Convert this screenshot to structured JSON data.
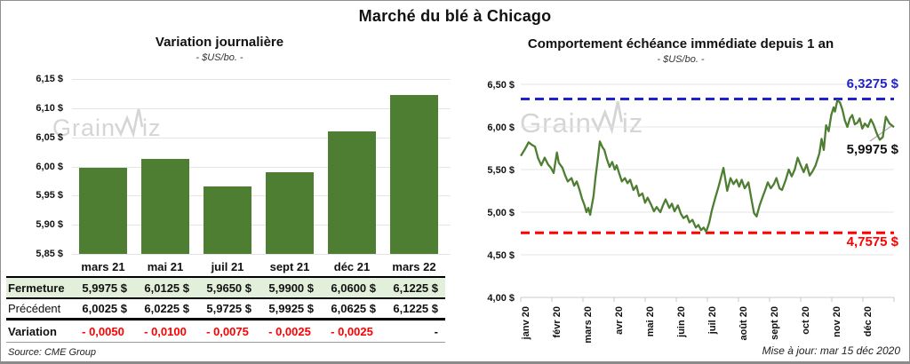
{
  "title": "Marché du blé à Chicago",
  "source": "Source: CME Group",
  "updated": "Mise à jour: mar 15 déc 2020",
  "watermark": {
    "part1": "Grain",
    "part2": "iz"
  },
  "colors": {
    "green": "#4e7e32",
    "light_green": "#e2efda",
    "blue": "#2222cc",
    "red": "#ff0000",
    "grid": "#e4e4e4",
    "axis": "#c8c8c8",
    "watermark": "#d5d5d5"
  },
  "table": {
    "columns": [
      "mars 21",
      "mai 21",
      "juil 21",
      "sept 21",
      "déc 21",
      "mars 22"
    ],
    "rows": [
      {
        "kind": "close",
        "label": "Fermeture",
        "values": [
          "5,9975 $",
          "6,0125 $",
          "5,9650 $",
          "5,9900 $",
          "6,0600 $",
          "6,1225 $"
        ]
      },
      {
        "kind": "prev",
        "label": "Précédent",
        "values": [
          "6,0025 $",
          "6,0225 $",
          "5,9725 $",
          "5,9925 $",
          "6,0625 $",
          "6,1225 $"
        ]
      },
      {
        "kind": "chg",
        "label": "Variation",
        "values": [
          "- 0,0050",
          "- 0,0100",
          "- 0,0075",
          "- 0,0025",
          "- 0,0025",
          "-"
        ]
      }
    ]
  },
  "chart_data": [
    {
      "type": "bar",
      "title": "Variation journalière",
      "subtitle": "- $US/bo. -",
      "categories": [
        "mars 21",
        "mai 21",
        "juil 21",
        "sept 21",
        "déc 21",
        "mars 22"
      ],
      "values": [
        5.9975,
        6.0125,
        5.965,
        5.99,
        6.06,
        6.1225
      ],
      "ylabel": "$US/bo.",
      "ylim": [
        5.85,
        6.15
      ],
      "ytick_step": 0.05,
      "grid": true,
      "bar_color": "#4e7e32"
    },
    {
      "type": "line",
      "title": "Comportement échéance immédiate depuis 1 an",
      "subtitle": "- $US/bo. -",
      "x_labels": [
        "janv 20",
        "févr 20",
        "mars 20",
        "avr 20",
        "mai 20",
        "juin 20",
        "juil 20",
        "août 20",
        "sept 20",
        "oct 20",
        "nov 20",
        "déc 20"
      ],
      "ylim": [
        4.0,
        6.5
      ],
      "ytick_step": 0.5,
      "grid": true,
      "max_line": {
        "value": 6.3275,
        "label": "6,3275 $",
        "color": "#2222cc"
      },
      "min_line": {
        "value": 4.7575,
        "label": "4,7575 $",
        "color": "#ff0000"
      },
      "last_label": {
        "value": 5.9975,
        "label": "5,9975 $",
        "color": "#111111"
      },
      "series": [
        {
          "name": "échéance immédiate",
          "color": "#4e7e32",
          "points": [
            [
              0.0,
              5.66
            ],
            [
              0.01,
              5.73
            ],
            [
              0.021,
              5.82
            ],
            [
              0.03,
              5.79
            ],
            [
              0.038,
              5.77
            ],
            [
              0.046,
              5.64
            ],
            [
              0.055,
              5.55
            ],
            [
              0.064,
              5.64
            ],
            [
              0.073,
              5.56
            ],
            [
              0.081,
              5.52
            ],
            [
              0.088,
              5.46
            ],
            [
              0.097,
              5.7
            ],
            [
              0.102,
              5.58
            ],
            [
              0.112,
              5.52
            ],
            [
              0.119,
              5.43
            ],
            [
              0.126,
              5.36
            ],
            [
              0.136,
              5.4
            ],
            [
              0.143,
              5.31
            ],
            [
              0.15,
              5.36
            ],
            [
              0.157,
              5.27
            ],
            [
              0.164,
              5.16
            ],
            [
              0.171,
              5.08
            ],
            [
              0.176,
              5.0
            ],
            [
              0.181,
              5.05
            ],
            [
              0.186,
              4.97
            ],
            [
              0.195,
              5.19
            ],
            [
              0.2,
              5.4
            ],
            [
              0.207,
              5.64
            ],
            [
              0.212,
              5.83
            ],
            [
              0.219,
              5.76
            ],
            [
              0.224,
              5.73
            ],
            [
              0.231,
              5.62
            ],
            [
              0.238,
              5.53
            ],
            [
              0.245,
              5.59
            ],
            [
              0.252,
              5.5
            ],
            [
              0.257,
              5.55
            ],
            [
              0.264,
              5.45
            ],
            [
              0.271,
              5.36
            ],
            [
              0.279,
              5.4
            ],
            [
              0.286,
              5.34
            ],
            [
              0.293,
              5.38
            ],
            [
              0.302,
              5.26
            ],
            [
              0.31,
              5.31
            ],
            [
              0.317,
              5.19
            ],
            [
              0.326,
              5.22
            ],
            [
              0.333,
              5.11
            ],
            [
              0.34,
              5.17
            ],
            [
              0.35,
              5.08
            ],
            [
              0.357,
              5.01
            ],
            [
              0.364,
              5.06
            ],
            [
              0.374,
              5.0
            ],
            [
              0.381,
              5.08
            ],
            [
              0.388,
              5.15
            ],
            [
              0.398,
              5.05
            ],
            [
              0.405,
              5.1
            ],
            [
              0.412,
              5.01
            ],
            [
              0.421,
              5.08
            ],
            [
              0.429,
              4.98
            ],
            [
              0.436,
              4.93
            ],
            [
              0.445,
              4.96
            ],
            [
              0.452,
              4.88
            ],
            [
              0.46,
              4.91
            ],
            [
              0.469,
              4.82
            ],
            [
              0.476,
              4.85
            ],
            [
              0.483,
              4.79
            ],
            [
              0.49,
              4.82
            ],
            [
              0.497,
              4.77
            ],
            [
              0.505,
              4.88
            ],
            [
              0.512,
              5.02
            ],
            [
              0.52,
              5.15
            ],
            [
              0.53,
              5.3
            ],
            [
              0.543,
              5.52
            ],
            [
              0.553,
              5.25
            ],
            [
              0.562,
              5.4
            ],
            [
              0.57,
              5.33
            ],
            [
              0.578,
              5.38
            ],
            [
              0.585,
              5.3
            ],
            [
              0.592,
              5.38
            ],
            [
              0.6,
              5.28
            ],
            [
              0.61,
              5.35
            ],
            [
              0.618,
              5.15
            ],
            [
              0.625,
              4.99
            ],
            [
              0.632,
              4.95
            ],
            [
              0.64,
              5.08
            ],
            [
              0.648,
              5.18
            ],
            [
              0.655,
              5.26
            ],
            [
              0.662,
              5.35
            ],
            [
              0.67,
              5.28
            ],
            [
              0.678,
              5.33
            ],
            [
              0.685,
              5.4
            ],
            [
              0.693,
              5.28
            ],
            [
              0.7,
              5.26
            ],
            [
              0.71,
              5.38
            ],
            [
              0.718,
              5.5
            ],
            [
              0.726,
              5.42
            ],
            [
              0.734,
              5.5
            ],
            [
              0.742,
              5.64
            ],
            [
              0.75,
              5.55
            ],
            [
              0.758,
              5.47
            ],
            [
              0.766,
              5.56
            ],
            [
              0.774,
              5.43
            ],
            [
              0.782,
              5.48
            ],
            [
              0.79,
              5.55
            ],
            [
              0.8,
              5.69
            ],
            [
              0.806,
              5.86
            ],
            [
              0.812,
              5.73
            ],
            [
              0.818,
              6.02
            ],
            [
              0.825,
              5.95
            ],
            [
              0.832,
              6.14
            ],
            [
              0.838,
              6.23
            ],
            [
              0.842,
              6.18
            ],
            [
              0.848,
              6.31
            ],
            [
              0.855,
              6.29
            ],
            [
              0.862,
              6.2
            ],
            [
              0.868,
              6.08
            ],
            [
              0.875,
              6.0
            ],
            [
              0.882,
              6.1
            ],
            [
              0.888,
              6.14
            ],
            [
              0.895,
              6.03
            ],
            [
              0.902,
              6.05
            ],
            [
              0.908,
              6.1
            ],
            [
              0.915,
              5.98
            ],
            [
              0.922,
              6.04
            ],
            [
              0.93,
              6.0
            ],
            [
              0.938,
              6.09
            ],
            [
              0.945,
              6.03
            ],
            [
              0.955,
              5.91
            ],
            [
              0.962,
              5.85
            ],
            [
              0.97,
              5.88
            ],
            [
              0.978,
              6.12
            ],
            [
              0.988,
              6.04
            ],
            [
              1.0,
              5.9975
            ]
          ]
        }
      ]
    }
  ]
}
